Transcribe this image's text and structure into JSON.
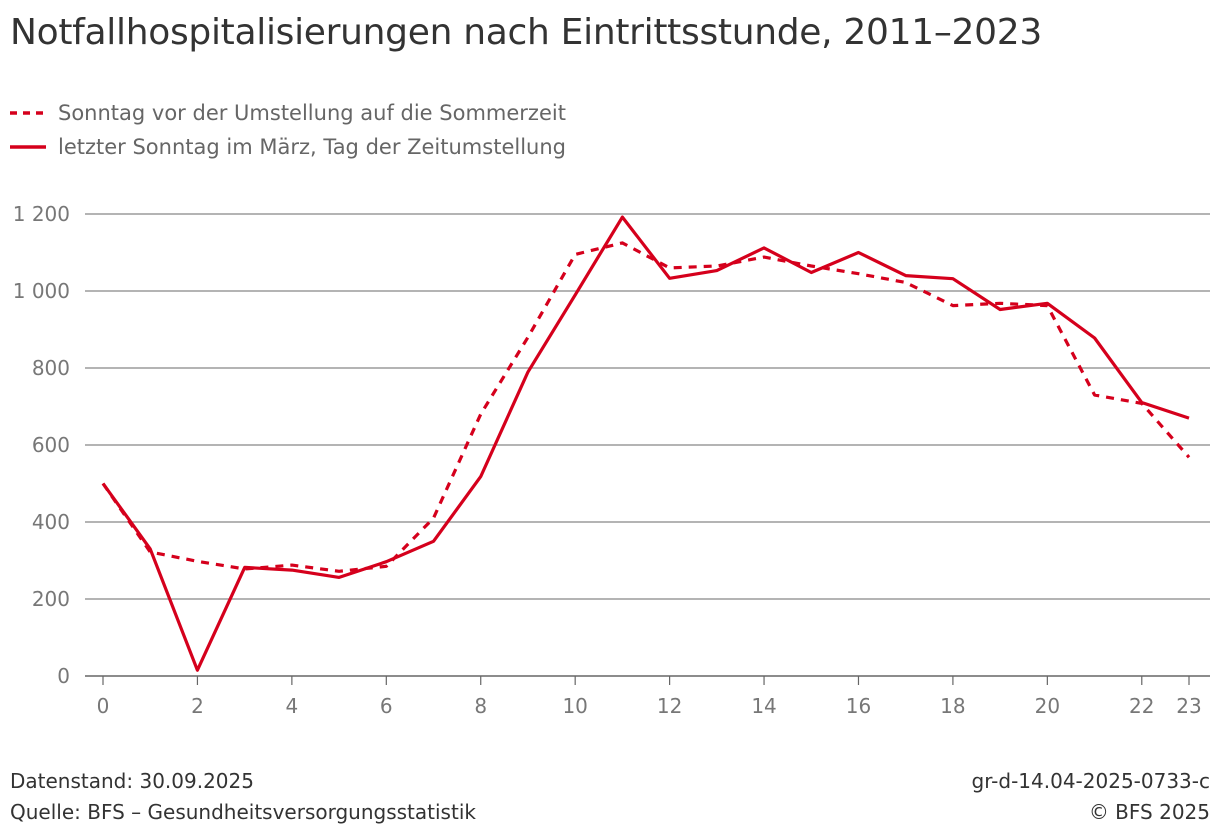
{
  "title": "Notfallhospitalisierungen nach Eintrittsstunde, 2011–2023",
  "legend": [
    {
      "label": "Sonntag vor der Umstellung auf die Sommerzeit",
      "style": "dashed"
    },
    {
      "label": "letzter Sonntag im März, Tag der Zeitumstellung",
      "style": "solid"
    }
  ],
  "colors": {
    "series": "#d5001c",
    "grid": "#888888",
    "axis_text": "#777777"
  },
  "footer": {
    "datenstand": "Datenstand: 30.09.2025",
    "quelle": "Quelle: BFS – Gesundheitsversorgungsstatistik",
    "code": "gr-d-14.04-2025-0733-c",
    "copyright": "© BFS 2025"
  },
  "chart_data": {
    "type": "line",
    "title": "Notfallhospitalisierungen nach Eintrittsstunde, 2011–2023",
    "xlabel": "",
    "ylabel": "",
    "x": [
      0,
      1,
      2,
      3,
      4,
      5,
      6,
      7,
      8,
      9,
      10,
      11,
      12,
      13,
      14,
      15,
      16,
      17,
      18,
      19,
      20,
      21,
      22,
      23
    ],
    "xticks": [
      0,
      2,
      4,
      6,
      8,
      10,
      12,
      14,
      16,
      18,
      20,
      22,
      23
    ],
    "yticks": [
      0,
      200,
      400,
      600,
      800,
      1000,
      1200
    ],
    "ytick_labels": [
      "0",
      "200",
      "400",
      "600",
      "800",
      "1 000",
      "1 200"
    ],
    "ylim": [
      0,
      1200
    ],
    "xlim": [
      0,
      23
    ],
    "grid": true,
    "series": [
      {
        "name": "Sonntag vor der Umstellung auf die Sommerzeit",
        "style": "dashed",
        "values": [
          500,
          322,
          298,
          278,
          288,
          272,
          285,
          410,
          680,
          880,
          1095,
          1125,
          1060,
          1065,
          1088,
          1065,
          1045,
          1022,
          962,
          968,
          962,
          730,
          708,
          568
        ]
      },
      {
        "name": "letzter Sonntag im März, Tag der Zeitumstellung",
        "style": "solid",
        "values": [
          500,
          330,
          15,
          282,
          275,
          256,
          297,
          350,
          518,
          790,
          990,
          1192,
          1033,
          1053,
          1112,
          1048,
          1100,
          1040,
          1032,
          952,
          968,
          878,
          710,
          670
        ]
      }
    ]
  }
}
